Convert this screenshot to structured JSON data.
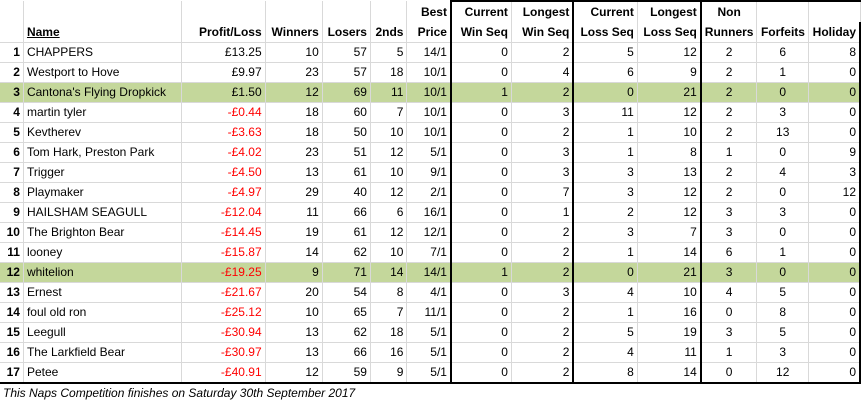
{
  "header": {
    "row1": {
      "best": "Best",
      "current_win": "Current",
      "longest_win": "Longest",
      "current_loss": "Current",
      "longest_loss": "Longest",
      "non": "Non"
    },
    "row2": {
      "name": "Name",
      "profit": "Profit/Loss",
      "winners": "Winners",
      "losers": "Losers",
      "seconds": "2nds",
      "price": "Price",
      "win_seq": "Win Seq",
      "win_seq2": "Win Seq",
      "loss_seq": "Loss Seq",
      "loss_seq2": "Loss Seq",
      "runners": "Runners",
      "forfeits": "Forfeits",
      "holiday": "Holiday"
    }
  },
  "rows": [
    {
      "rank": "1",
      "name": "CHAPPERS",
      "profit": "£13.25",
      "winners": "10",
      "losers": "57",
      "seconds": "5",
      "price": "14/1",
      "cur_win": "0",
      "long_win": "2",
      "cur_loss": "5",
      "long_loss": "12",
      "non_runners": "2",
      "forfeits": "6",
      "holiday": "8"
    },
    {
      "rank": "2",
      "name": "Westport to Hove",
      "profit": "£9.97",
      "winners": "23",
      "losers": "57",
      "seconds": "18",
      "price": "10/1",
      "cur_win": "0",
      "long_win": "4",
      "cur_loss": "6",
      "long_loss": "9",
      "non_runners": "2",
      "forfeits": "1",
      "holiday": "0"
    },
    {
      "rank": "3",
      "name": "Cantona's Flying Dropkick",
      "profit": "£1.50",
      "winners": "12",
      "losers": "69",
      "seconds": "11",
      "price": "10/1",
      "cur_win": "1",
      "long_win": "2",
      "cur_loss": "0",
      "long_loss": "21",
      "non_runners": "2",
      "forfeits": "0",
      "holiday": "0"
    },
    {
      "rank": "4",
      "name": "martin tyler",
      "profit": "-£0.44",
      "winners": "18",
      "losers": "60",
      "seconds": "7",
      "price": "10/1",
      "cur_win": "0",
      "long_win": "3",
      "cur_loss": "11",
      "long_loss": "12",
      "non_runners": "2",
      "forfeits": "3",
      "holiday": "0"
    },
    {
      "rank": "5",
      "name": "Kevtherev",
      "profit": "-£3.63",
      "winners": "18",
      "losers": "50",
      "seconds": "10",
      "price": "10/1",
      "cur_win": "0",
      "long_win": "2",
      "cur_loss": "1",
      "long_loss": "10",
      "non_runners": "2",
      "forfeits": "13",
      "holiday": "0"
    },
    {
      "rank": "6",
      "name": "Tom Hark, Preston Park",
      "profit": "-£4.02",
      "winners": "23",
      "losers": "51",
      "seconds": "12",
      "price": "5/1",
      "cur_win": "0",
      "long_win": "3",
      "cur_loss": "1",
      "long_loss": "8",
      "non_runners": "1",
      "forfeits": "0",
      "holiday": "9"
    },
    {
      "rank": "7",
      "name": "Trigger",
      "profit": "-£4.50",
      "winners": "13",
      "losers": "61",
      "seconds": "10",
      "price": "9/1",
      "cur_win": "0",
      "long_win": "3",
      "cur_loss": "3",
      "long_loss": "13",
      "non_runners": "2",
      "forfeits": "4",
      "holiday": "3"
    },
    {
      "rank": "8",
      "name": "Playmaker",
      "profit": "-£4.97",
      "winners": "29",
      "losers": "40",
      "seconds": "12",
      "price": "2/1",
      "cur_win": "0",
      "long_win": "7",
      "cur_loss": "3",
      "long_loss": "12",
      "non_runners": "2",
      "forfeits": "0",
      "holiday": "12"
    },
    {
      "rank": "9",
      "name": "HAILSHAM SEAGULL",
      "profit": "-£12.04",
      "winners": "11",
      "losers": "66",
      "seconds": "6",
      "price": "16/1",
      "cur_win": "0",
      "long_win": "1",
      "cur_loss": "2",
      "long_loss": "12",
      "non_runners": "3",
      "forfeits": "3",
      "holiday": "0"
    },
    {
      "rank": "10",
      "name": "The Brighton Bear",
      "profit": "-£14.45",
      "winners": "19",
      "losers": "61",
      "seconds": "12",
      "price": "12/1",
      "cur_win": "0",
      "long_win": "2",
      "cur_loss": "3",
      "long_loss": "7",
      "non_runners": "3",
      "forfeits": "0",
      "holiday": "0"
    },
    {
      "rank": "11",
      "name": "looney",
      "profit": "-£15.87",
      "winners": "14",
      "losers": "62",
      "seconds": "10",
      "price": "7/1",
      "cur_win": "0",
      "long_win": "2",
      "cur_loss": "1",
      "long_loss": "14",
      "non_runners": "6",
      "forfeits": "1",
      "holiday": "0"
    },
    {
      "rank": "12",
      "name": "whitelion",
      "profit": "-£19.25",
      "winners": "9",
      "losers": "71",
      "seconds": "14",
      "price": "14/1",
      "cur_win": "1",
      "long_win": "2",
      "cur_loss": "0",
      "long_loss": "21",
      "non_runners": "3",
      "forfeits": "0",
      "holiday": "0"
    },
    {
      "rank": "13",
      "name": "Ernest",
      "profit": "-£21.67",
      "winners": "20",
      "losers": "54",
      "seconds": "8",
      "price": "4/1",
      "cur_win": "0",
      "long_win": "3",
      "cur_loss": "4",
      "long_loss": "10",
      "non_runners": "4",
      "forfeits": "5",
      "holiday": "0"
    },
    {
      "rank": "14",
      "name": "foul old ron",
      "profit": "-£25.12",
      "winners": "10",
      "losers": "65",
      "seconds": "7",
      "price": "11/1",
      "cur_win": "0",
      "long_win": "2",
      "cur_loss": "1",
      "long_loss": "16",
      "non_runners": "0",
      "forfeits": "8",
      "holiday": "0"
    },
    {
      "rank": "15",
      "name": "Leegull",
      "profit": "-£30.94",
      "winners": "13",
      "losers": "62",
      "seconds": "18",
      "price": "5/1",
      "cur_win": "0",
      "long_win": "2",
      "cur_loss": "5",
      "long_loss": "19",
      "non_runners": "3",
      "forfeits": "5",
      "holiday": "0"
    },
    {
      "rank": "16",
      "name": "The Larkfield Bear",
      "profit": "-£30.97",
      "winners": "13",
      "losers": "66",
      "seconds": "16",
      "price": "5/1",
      "cur_win": "0",
      "long_win": "2",
      "cur_loss": "4",
      "long_loss": "11",
      "non_runners": "1",
      "forfeits": "3",
      "holiday": "0"
    },
    {
      "rank": "17",
      "name": "Petee",
      "profit": "-£40.91",
      "winners": "12",
      "losers": "59",
      "seconds": "9",
      "price": "5/1",
      "cur_win": "0",
      "long_win": "2",
      "cur_loss": "8",
      "long_loss": "14",
      "non_runners": "0",
      "forfeits": "12",
      "holiday": "0"
    }
  ],
  "highlighted_ranks": [
    "3",
    "12"
  ],
  "colors": {
    "highlight": "#c4d79b",
    "negative": "#ff0000",
    "gridline": "#d9d9d9"
  },
  "footnote": "This Naps Competition finishes on Saturday 30th September 2017"
}
